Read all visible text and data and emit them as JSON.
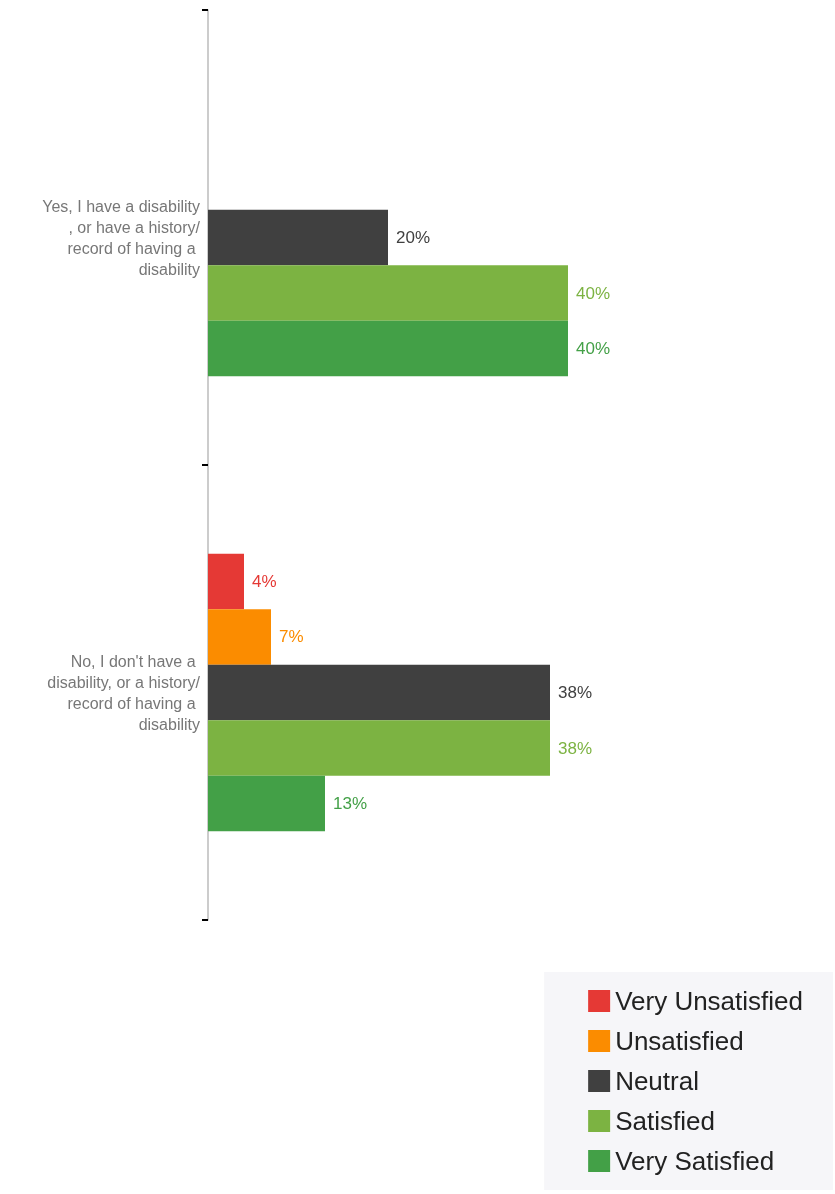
{
  "chart_data": {
    "type": "bar",
    "orientation": "horizontal",
    "categories": [
      "Yes, I have a disability, or have a history/record of having a disability",
      "No, I don't have a disability, or a history/record of having a disability"
    ],
    "series": [
      {
        "name": "Very Unsatisfied",
        "color": "#e53935",
        "values": [
          null,
          4
        ],
        "value_labels": [
          null,
          "4%"
        ]
      },
      {
        "name": "Unsatisfied",
        "color": "#fb8c00",
        "values": [
          null,
          7
        ],
        "value_labels": [
          null,
          "7%"
        ]
      },
      {
        "name": "Neutral",
        "color": "#404040",
        "values": [
          20,
          38
        ],
        "value_labels": [
          "20%",
          "38%"
        ]
      },
      {
        "name": "Satisfied",
        "color": "#7cb342",
        "values": [
          40,
          38
        ],
        "value_labels": [
          "40%",
          "38%"
        ]
      },
      {
        "name": "Very Satisfied",
        "color": "#43a047",
        "values": [
          40,
          13
        ],
        "value_labels": [
          "40%",
          "13%"
        ]
      }
    ],
    "legend": "bottom right"
  }
}
